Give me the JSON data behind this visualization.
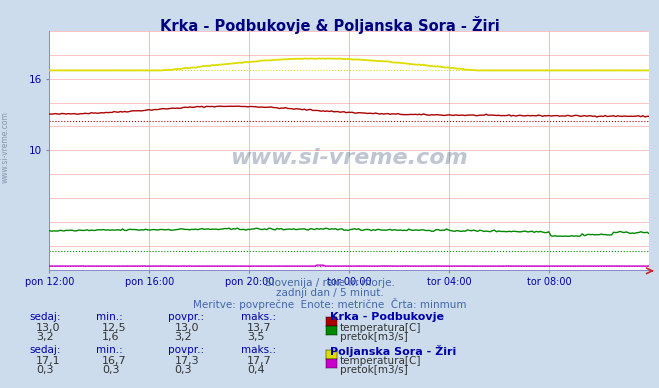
{
  "title": "Krka - Podbukovje & Poljanska Sora - Žiri",
  "title_color": "#000080",
  "bg_color": "#ccdcec",
  "plot_bg_color": "#ffffff",
  "grid_color_h": "#ffaaaa",
  "grid_color_v": "#ddaaaa",
  "xlabel_ticks": [
    "pon 12:00",
    "pon 16:00",
    "pon 20:00",
    "tor 00:00",
    "tor 04:00",
    "tor 08:00"
  ],
  "n_points": 288,
  "ylim": [
    0,
    20
  ],
  "subtitle1": "Slovenija / reke in morje.",
  "subtitle2": "zadnji dan / 5 minut.",
  "subtitle3": "Meritve: povprečne  Enote: metrične  Črta: minmum",
  "subtitle_color": "#4466aa",
  "watermark": "www.si-vreme.com",
  "krka_temp_color": "#aa0000",
  "krka_flow_color": "#008800",
  "sora_temp_color": "#dddd00",
  "sora_flow_color": "#cc00cc",
  "axis_color": "#0000aa",
  "text_color": "#0000aa",
  "krka_temp_min": 12.5,
  "krka_temp_max": 13.7,
  "krka_temp_mean": 13.0,
  "krka_flow_min": 1.6,
  "krka_flow_max": 3.5,
  "krka_flow_mean": 3.2,
  "sora_temp_min": 16.7,
  "sora_temp_max": 17.7,
  "sora_temp_mean": 17.3,
  "sora_flow_min": 0.3,
  "sora_flow_max": 0.4,
  "sora_flow_mean": 0.3,
  "krka_sedaj": 13.0,
  "krka_flow_sedaj": 3.2,
  "sora_sedaj": 17.1,
  "sora_flow_sedaj": 0.3
}
